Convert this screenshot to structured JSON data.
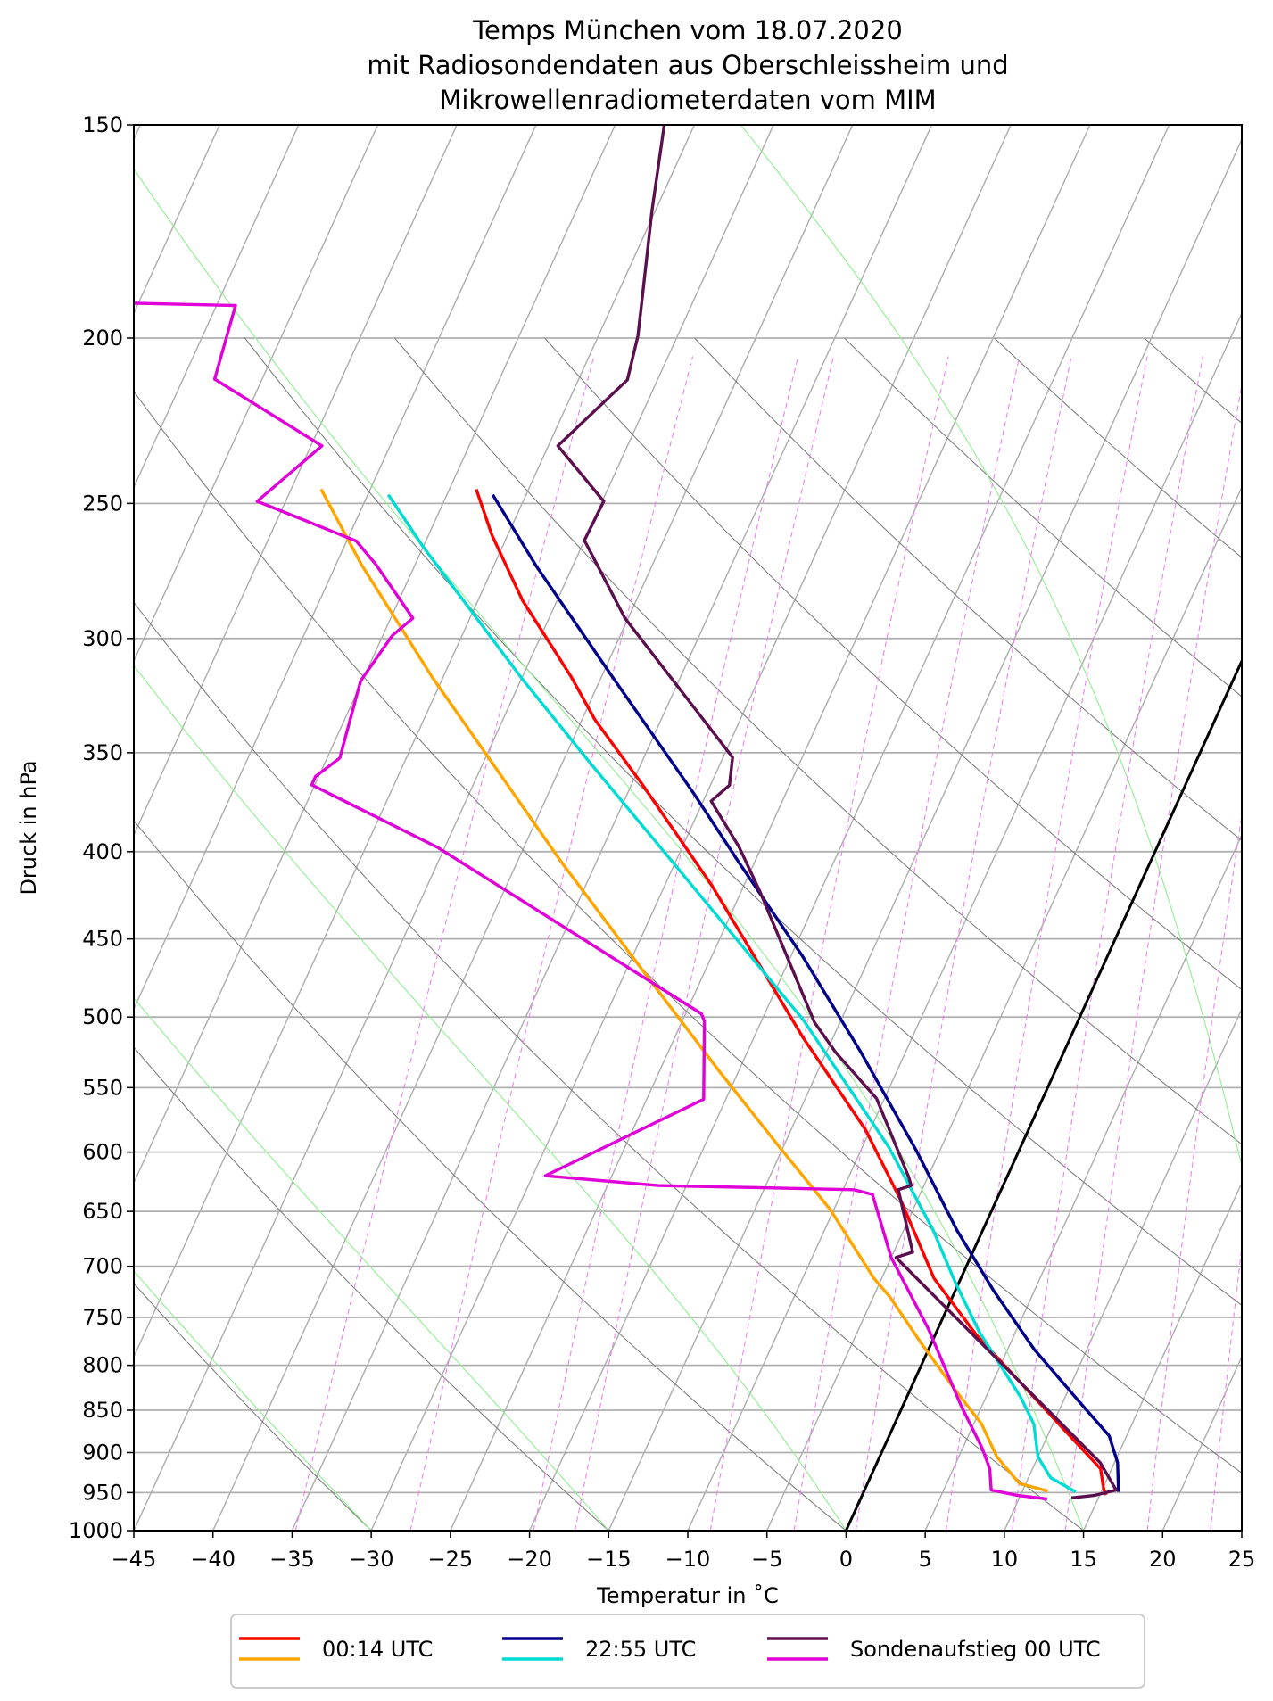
{
  "chart_data": {
    "type": "line",
    "diagram": "skew-T log-p",
    "title": [
      "Temps München vom 18.07.2020",
      "mit Radiosondendaten aus Oberschleissheim und",
      "Mikrowellenradiometerdaten vom MIM"
    ],
    "xlabel": "Temperatur in ˚C",
    "ylabel": "Druck in hPa",
    "xlim": [
      -45,
      25
    ],
    "ylim": [
      1000,
      150
    ],
    "yscale": "log",
    "grid": true,
    "xticks": [
      "−45",
      "−40",
      "−35",
      "−30",
      "−25",
      "−20",
      "−15",
      "−10",
      "−5",
      "0",
      "5",
      "10",
      "15",
      "20",
      "25"
    ],
    "xtick_values": [
      -45,
      -40,
      -35,
      -30,
      -25,
      -20,
      -15,
      -10,
      -5,
      0,
      5,
      10,
      15,
      20,
      25
    ],
    "yticks": [
      "150",
      "200",
      "250",
      "300",
      "350",
      "400",
      "450",
      "500",
      "550",
      "600",
      "650",
      "700",
      "750",
      "800",
      "850",
      "900",
      "950",
      "1000"
    ],
    "ytick_values": [
      150,
      200,
      250,
      300,
      350,
      400,
      450,
      500,
      550,
      600,
      650,
      700,
      750,
      800,
      850,
      900,
      950,
      1000
    ],
    "reference_lines": {
      "isotherm_step_degC": 5,
      "highlighted_isotherm_degC": 0,
      "dry_adiabat_start_degC": [
        -30,
        -15,
        0,
        15,
        30,
        45,
        60,
        75,
        90,
        105,
        120,
        135,
        150
      ],
      "moist_adiabat_start_degC": [
        -30,
        -15,
        0,
        15,
        30,
        45
      ],
      "mixing_ratios_g_per_kg": [
        0.2,
        0.4,
        0.8,
        1,
        2,
        3,
        4,
        6,
        8,
        10,
        14,
        18
      ],
      "colors": {
        "isotherm": "#b0b0b0",
        "dry_adiabat": "#7f7f7f",
        "moist_adiabat": "#90ee90",
        "mixing_ratio": "#ee82ee",
        "highlight": "#000000"
      }
    },
    "legend": {
      "placement": "bottom-center, below axes",
      "entries": [
        {
          "label": "00:14 UTC",
          "colors": [
            "#ff0000",
            "#ffa500"
          ]
        },
        {
          "label": "22:55 UTC",
          "colors": [
            "#00008b",
            "#00dcd4"
          ]
        },
        {
          "label": "Sondenaufstieg 00 UTC",
          "colors": [
            "#5c0f4e",
            "#e000d8"
          ]
        }
      ]
    },
    "series": [
      {
        "legend_entry": 0,
        "kind": "temperature",
        "color": "#ff0000",
        "points_p_hPa_T_degC": [
          [
            245.3,
            -53.3
          ],
          [
            260.9,
            -51.0
          ],
          [
            284.9,
            -47.2
          ],
          [
            316.0,
            -41.9
          ],
          [
            334.6,
            -39.2
          ],
          [
            365.5,
            -34.3
          ],
          [
            418.9,
            -27.0
          ],
          [
            514.0,
            -16.9
          ],
          [
            582.1,
            -10.3
          ],
          [
            640.9,
            -6.0
          ],
          [
            711.4,
            -1.7
          ],
          [
            767.8,
            2.6
          ],
          [
            821.9,
            7.0
          ],
          [
            873.0,
            10.9
          ],
          [
            919.8,
            14.3
          ],
          [
            946.0,
            15.1
          ],
          [
            953.0,
            15.4
          ]
        ]
      },
      {
        "legend_entry": 0,
        "kind": "dewpoint",
        "color": "#ffa500",
        "points_p_hPa_T_degC": [
          [
            245.3,
            -63.1
          ],
          [
            271.5,
            -58.4
          ],
          [
            316.0,
            -50.7
          ],
          [
            351.1,
            -45.0
          ],
          [
            405.7,
            -37.2
          ],
          [
            472.5,
            -28.6
          ],
          [
            537.2,
            -21.3
          ],
          [
            596.3,
            -15.2
          ],
          [
            648.7,
            -10.2
          ],
          [
            711.4,
            -5.5
          ],
          [
            728.8,
            -4.0
          ],
          [
            777.1,
            -0.6
          ],
          [
            821.9,
            2.5
          ],
          [
            866.1,
            5.5
          ],
          [
            905.1,
            7.4
          ],
          [
            938.4,
            9.6
          ],
          [
            947.9,
            11.6
          ]
        ]
      },
      {
        "legend_entry": 1,
        "kind": "temperature",
        "color": "#00008b",
        "points_p_hPa_T_degC": [
          [
            247.1,
            -52.1
          ],
          [
            272.1,
            -47.3
          ],
          [
            316.0,
            -39.3
          ],
          [
            369.9,
            -30.8
          ],
          [
            405.7,
            -26.0
          ],
          [
            461.2,
            -19.2
          ],
          [
            524.5,
            -12.8
          ],
          [
            598.6,
            -6.5
          ],
          [
            667.2,
            -1.6
          ],
          [
            723.0,
            2.4
          ],
          [
            783.3,
            6.7
          ],
          [
            845.4,
            11.4
          ],
          [
            880.0,
            13.9
          ],
          [
            912.4,
            15.2
          ],
          [
            949.1,
            16.1
          ]
        ]
      },
      {
        "legend_entry": 1,
        "kind": "dewpoint",
        "color": "#00dcd4",
        "points_p_hPa_T_degC": [
          [
            247.1,
            -58.7
          ],
          [
            265.1,
            -55.0
          ],
          [
            316.0,
            -45.1
          ],
          [
            353.9,
            -38.4
          ],
          [
            408.9,
            -29.7
          ],
          [
            501.8,
            -17.4
          ],
          [
            596.3,
            -8.3
          ],
          [
            667.2,
            -3.1
          ],
          [
            714.3,
            -0.3
          ],
          [
            764.7,
            2.7
          ],
          [
            835.3,
            7.2
          ],
          [
            866.1,
            8.8
          ],
          [
            905.1,
            10.0
          ],
          [
            931.0,
            11.4
          ],
          [
            949.1,
            13.4
          ]
        ]
      },
      {
        "legend_entry": 2,
        "kind": "temperature",
        "color": "#5c0f4e",
        "points_p_hPa_T_degC": [
          [
            150,
            -51.9
          ],
          [
            168.5,
            -50.2
          ],
          [
            188.5,
            -48.4
          ],
          [
            199.4,
            -47.5
          ],
          [
            211.6,
            -46.9
          ],
          [
            231.3,
            -49.4
          ],
          [
            249.3,
            -44.9
          ],
          [
            262.8,
            -45.0
          ],
          [
            291.9,
            -40.2
          ],
          [
            352.2,
            -29.4
          ],
          [
            365.7,
            -28.8
          ],
          [
            373.6,
            -29.5
          ],
          [
            397.6,
            -26.4
          ],
          [
            422.3,
            -23.8
          ],
          [
            503.7,
            -16.6
          ],
          [
            524.5,
            -14.4
          ],
          [
            558.1,
            -10.5
          ],
          [
            620.7,
            -6.2
          ],
          [
            627.7,
            -5.8
          ],
          [
            631.2,
            -6.5
          ],
          [
            686.7,
            -3.8
          ],
          [
            691.7,
            -4.7
          ],
          [
            789.6,
            4.3
          ],
          [
            912.4,
            14.1
          ],
          [
            946.7,
            15.9
          ],
          [
            953.5,
            14.7
          ],
          [
            956.8,
            13.3
          ]
        ]
      },
      {
        "legend_entry": 2,
        "kind": "dewpoint",
        "color": "#e000d8",
        "points_p_hPa_T_degC": [
          [
            190.8,
            -80.4
          ],
          [
            191.4,
            -73.8
          ],
          [
            211.4,
            -73.0
          ],
          [
            231.3,
            -64.3
          ],
          [
            249.3,
            -66.8
          ],
          [
            263.0,
            -59.4
          ],
          [
            271.4,
            -57.5
          ],
          [
            291.9,
            -53.6
          ],
          [
            298.8,
            -54.4
          ],
          [
            317.6,
            -55.1
          ],
          [
            352.5,
            -54.2
          ],
          [
            361.4,
            -55.2
          ],
          [
            365.5,
            -55.2
          ],
          [
            397.9,
            -45.4
          ],
          [
            497.8,
            -24.0
          ],
          [
            502.8,
            -23.6
          ],
          [
            558.7,
            -21.4
          ],
          [
            619.5,
            -29.2
          ],
          [
            627.7,
            -21.8
          ],
          [
            631.2,
            -9.3
          ],
          [
            635.3,
            -8.0
          ],
          [
            691.7,
            -5.0
          ],
          [
            761.6,
            -0.6
          ],
          [
            845.4,
            3.7
          ],
          [
            894.1,
            6.2
          ],
          [
            919.8,
            7.3
          ],
          [
            946.7,
            8.0
          ],
          [
            953.5,
            9.8
          ],
          [
            958.2,
            11.8
          ]
        ]
      }
    ]
  }
}
